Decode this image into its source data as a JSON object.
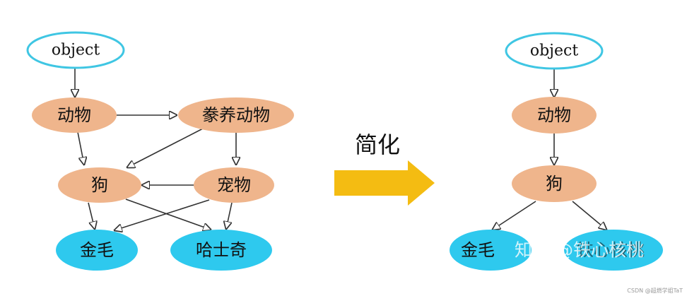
{
  "colors": {
    "object_stroke": "#3fc6e3",
    "class_fill": "#efb58c",
    "leaf_fill": "#2ec9ee",
    "arrow_fill": "#f4bc12",
    "edge": "#333333"
  },
  "left_diagram": {
    "object": "object",
    "animal": "动物",
    "domestic": "豢养动物",
    "dog": "狗",
    "pet": "宠物",
    "golden": "金毛",
    "husky": "哈士奇"
  },
  "transition": {
    "label": "简化",
    "arrow_icon": "right-arrow-icon"
  },
  "right_diagram": {
    "object": "object",
    "animal": "动物",
    "dog": "狗",
    "golden": "金毛",
    "husky": "铁心核桃"
  },
  "watermark": "知乎 @铁心核桃",
  "credit": "CSDN @超燃学姐TaT"
}
